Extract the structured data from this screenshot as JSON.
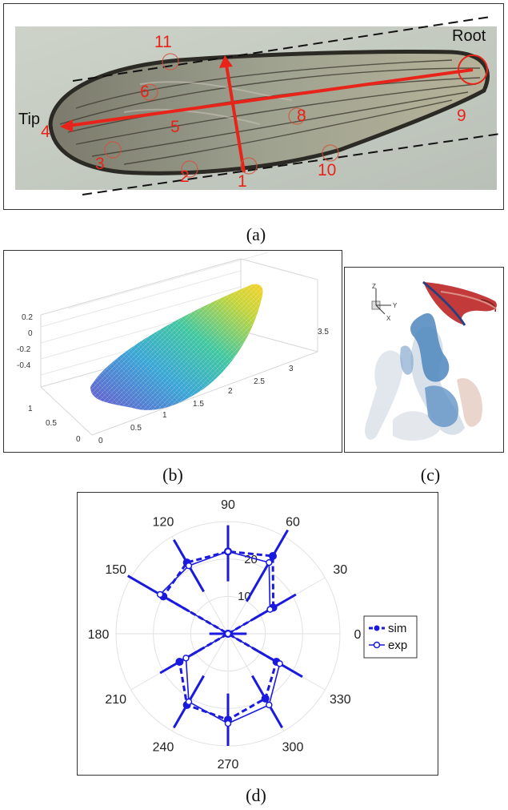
{
  "panel_a": {
    "label_tip": "Tip",
    "label_root": "Root",
    "numbers": [
      "1",
      "2",
      "3",
      "4",
      "5",
      "6",
      "8",
      "9",
      "10",
      "11"
    ],
    "line_color": "#e8241a",
    "caption": "(a)"
  },
  "panel_b": {
    "z_ticks": [
      "0.2",
      "0",
      "-0.2",
      "-0.4"
    ],
    "x_ticks": [
      "0.5",
      "1",
      "1.5",
      "2",
      "2.5",
      "3",
      "3.5"
    ],
    "x_zero": "0",
    "y_ticks": [
      "1",
      "0.5",
      "0"
    ],
    "caption": "(b)"
  },
  "panel_c": {
    "axis_labels": [
      "Z",
      "Y",
      "X"
    ],
    "caption": "(c)"
  },
  "panel_d": {
    "caption": "(d)",
    "angle_labels": [
      "0",
      "30",
      "60",
      "90",
      "120",
      "150",
      "180",
      "210",
      "240",
      "270",
      "300",
      "330"
    ],
    "radial_labels": [
      "10",
      "20"
    ],
    "legend": [
      {
        "name": "sim"
      },
      {
        "name": "exp"
      }
    ],
    "series_color": "#1a1adf"
  },
  "chart_data": {
    "type": "polar",
    "rlim": [
      0,
      30
    ],
    "radial_ticks": [
      10,
      20
    ],
    "angle_ticks_deg": [
      0,
      30,
      60,
      90,
      120,
      150,
      180,
      210,
      240,
      270,
      300,
      330
    ],
    "legend_position": "right",
    "series": [
      {
        "name": "sim",
        "style": "dashed",
        "points": [
          {
            "theta": 0,
            "r": 0
          },
          {
            "theta": 30,
            "r": 14
          },
          {
            "theta": 60,
            "r": 24
          },
          {
            "theta": 90,
            "r": 22
          },
          {
            "theta": 120,
            "r": 22
          },
          {
            "theta": 150,
            "r": 20
          },
          {
            "theta": 180,
            "r": 0
          },
          {
            "theta": 210,
            "r": 15
          },
          {
            "theta": 240,
            "r": 22
          },
          {
            "theta": 270,
            "r": 23
          },
          {
            "theta": 300,
            "r": 20
          },
          {
            "theta": 330,
            "r": 15
          }
        ]
      },
      {
        "name": "exp",
        "style": "solid",
        "points": [
          {
            "theta": 0,
            "r": 0
          },
          {
            "theta": 30,
            "r": 13
          },
          {
            "theta": 60,
            "r": 22
          },
          {
            "theta": 90,
            "r": 22
          },
          {
            "theta": 120,
            "r": 21
          },
          {
            "theta": 150,
            "r": 21
          },
          {
            "theta": 180,
            "r": 0
          },
          {
            "theta": 210,
            "r": 13
          },
          {
            "theta": 240,
            "r": 21
          },
          {
            "theta": 270,
            "r": 24
          },
          {
            "theta": 300,
            "r": 22
          },
          {
            "theta": 330,
            "r": 16
          }
        ]
      }
    ],
    "error_bars_r": [
      {
        "theta": 0,
        "lo": 0,
        "hi": 5
      },
      {
        "theta": 30,
        "lo": 8,
        "hi": 21
      },
      {
        "theta": 60,
        "lo": 10,
        "hi": 32
      },
      {
        "theta": 90,
        "lo": 14,
        "hi": 29
      },
      {
        "theta": 120,
        "lo": 13,
        "hi": 29
      },
      {
        "theta": 150,
        "lo": 12,
        "hi": 31
      },
      {
        "theta": 180,
        "lo": 0,
        "hi": 5
      },
      {
        "theta": 210,
        "lo": 8,
        "hi": 21
      },
      {
        "theta": 240,
        "lo": 13,
        "hi": 29
      },
      {
        "theta": 270,
        "lo": 16,
        "hi": 30
      },
      {
        "theta": 300,
        "lo": 13,
        "hi": 29
      },
      {
        "theta": 330,
        "lo": 8,
        "hi": 23
      }
    ]
  }
}
